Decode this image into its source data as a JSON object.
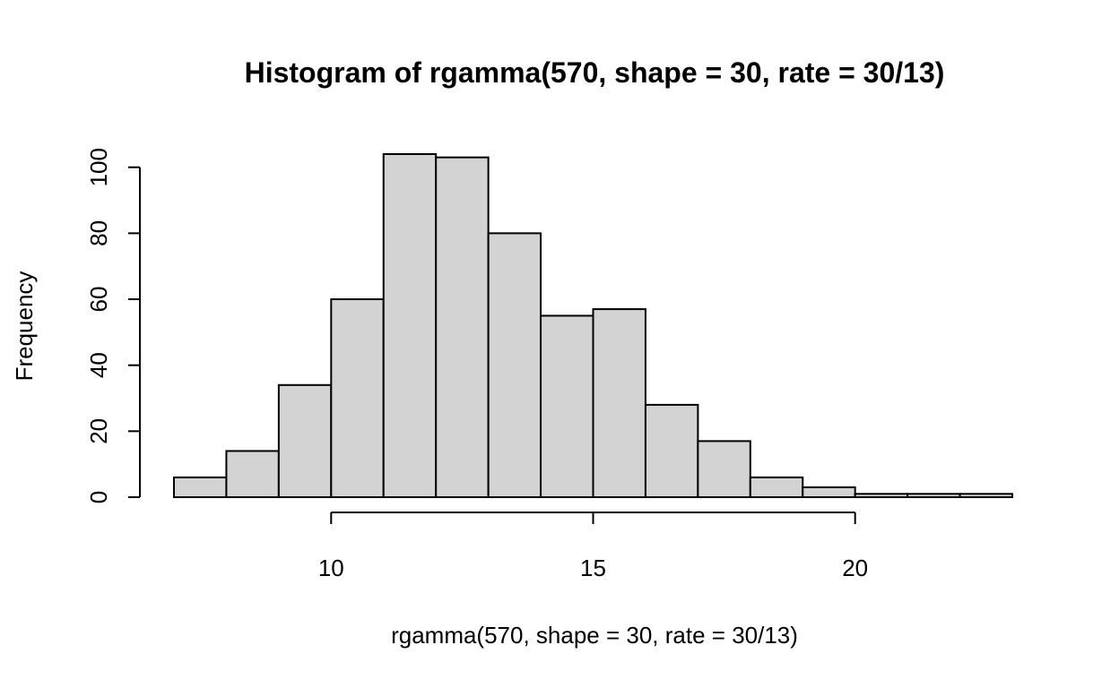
{
  "chart_data": {
    "type": "bar",
    "subtype": "histogram",
    "title": "Histogram of rgamma(570, shape = 30, rate = 30/13)",
    "xlabel": "rgamma(570, shape = 30, rate = 30/13)",
    "ylabel": "Frequency",
    "bins": [
      {
        "start": 7,
        "end": 8,
        "count": 6
      },
      {
        "start": 8,
        "end": 9,
        "count": 14
      },
      {
        "start": 9,
        "end": 10,
        "count": 34
      },
      {
        "start": 10,
        "end": 11,
        "count": 60
      },
      {
        "start": 11,
        "end": 12,
        "count": 104
      },
      {
        "start": 12,
        "end": 13,
        "count": 103
      },
      {
        "start": 13,
        "end": 14,
        "count": 80
      },
      {
        "start": 14,
        "end": 15,
        "count": 55
      },
      {
        "start": 15,
        "end": 16,
        "count": 57
      },
      {
        "start": 16,
        "end": 17,
        "count": 28
      },
      {
        "start": 17,
        "end": 18,
        "count": 17
      },
      {
        "start": 18,
        "end": 19,
        "count": 6
      },
      {
        "start": 19,
        "end": 20,
        "count": 3
      },
      {
        "start": 20,
        "end": 21,
        "count": 1
      },
      {
        "start": 21,
        "end": 22,
        "count": 1
      },
      {
        "start": 22,
        "end": 23,
        "count": 1
      }
    ],
    "xlim": [
      7,
      23
    ],
    "ylim": [
      0,
      104
    ],
    "x_ticks": [
      10,
      15,
      20
    ],
    "y_ticks": [
      0,
      20,
      40,
      60,
      80,
      100
    ],
    "bar_fill": "#d3d3d3",
    "bar_stroke": "#000000",
    "grid": false,
    "legend": "none"
  }
}
